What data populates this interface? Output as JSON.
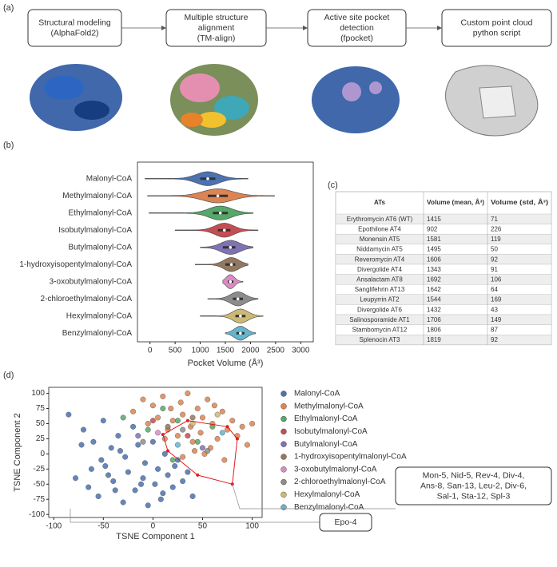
{
  "panels": [
    "(a)",
    "(b)",
    "(c)",
    "(d)"
  ],
  "workflow": {
    "steps": [
      {
        "title": "Structural modeling",
        "subtitle": "(AlphaFold2)"
      },
      {
        "title": "Multiple structure",
        "subtitle": "alignment",
        "subtitle2": "(TM-align)"
      },
      {
        "title": "Active site pocket",
        "subtitle": "detection",
        "subtitle2": "(fpocket)"
      },
      {
        "title": "Custom point cloud",
        "subtitle": "python script"
      }
    ]
  },
  "table": {
    "columns": [
      "ATs",
      "Volume (mean, Å³)",
      "Volume (std, Å³)"
    ],
    "rows": [
      [
        "Erythromycin AT6 (WT)",
        1415,
        71
      ],
      [
        "Epothilone AT4",
        902,
        226
      ],
      [
        "Monensin AT5",
        1581,
        119
      ],
      [
        "Niddamycin AT5",
        1495,
        50
      ],
      [
        "Reveromycin AT4",
        1606,
        92
      ],
      [
        "Divergolide AT4",
        1343,
        91
      ],
      [
        "Ansalactam AT8",
        1692,
        106
      ],
      [
        "Sanglifehrin AT13",
        1642,
        64
      ],
      [
        "Leupyrrin AT2",
        1544,
        169
      ],
      [
        "Divergolide AT6",
        1432,
        43
      ],
      [
        "Salinosporamide AT1",
        1706,
        149
      ],
      [
        "Stambomycin AT12",
        1806,
        87
      ],
      [
        "Splenocin AT3",
        1819,
        92
      ]
    ]
  },
  "chart_data": [
    {
      "type": "violin",
      "xlabel": "Pocket Volume (Å³)",
      "categories": [
        "Malonyl-CoA",
        "Methylmalonyl-CoA",
        "Ethylmalonyl-CoA",
        "Isobutylmalonyl-CoA",
        "Butylmalonyl-CoA",
        "1-hydroxyisopentylmalonyl-CoA",
        "3-oxobutylmalonyl-CoA",
        "2-chloroethylmalonyl-CoA",
        "Hexylmalonyl-CoA",
        "Benzylmalonyl-CoA"
      ],
      "colors": [
        "#4c72b0",
        "#dd8452",
        "#55a868",
        "#c44e52",
        "#8172b3",
        "#937860",
        "#da8bc3",
        "#8c8c8c",
        "#ccb974",
        "#64b5cd"
      ],
      "min": [
        -100,
        -50,
        -20,
        500,
        1000,
        900,
        1450,
        1150,
        1000,
        1500
      ],
      "q1": [
        1000,
        1150,
        1250,
        1350,
        1450,
        1500,
        1550,
        1650,
        1700,
        1720
      ],
      "median": [
        1150,
        1350,
        1400,
        1480,
        1600,
        1620,
        1600,
        1750,
        1800,
        1800
      ],
      "q3": [
        1300,
        1550,
        1550,
        1600,
        1700,
        1700,
        1660,
        1850,
        1900,
        1880
      ],
      "max": [
        1950,
        2480,
        2050,
        2150,
        2050,
        1950,
        1850,
        2150,
        2250,
        2100
      ],
      "xlim": [
        -250,
        3250
      ],
      "xticks": [
        0,
        500,
        1000,
        1500,
        2000,
        2500,
        3000
      ]
    },
    {
      "type": "scatter",
      "xlabel": "TSNE Component 1",
      "ylabel": "TSNE Component 2",
      "xlim": [
        -105,
        110
      ],
      "ylim": [
        -105,
        110
      ],
      "xticks": [
        -100,
        -50,
        0,
        50,
        100
      ],
      "yticks": [
        -100,
        -75,
        -50,
        -25,
        0,
        25,
        50,
        75,
        100
      ],
      "series": [
        {
          "name": "Malonyl-CoA",
          "color": "#4c72b0",
          "x": [
            -85,
            -78,
            -70,
            -65,
            -60,
            -55,
            -50,
            -48,
            -42,
            -40,
            -35,
            -30,
            -28,
            -25,
            -20,
            -18,
            -15,
            -10,
            -8,
            -5,
            0,
            2,
            5,
            10,
            12,
            15,
            20,
            25,
            30,
            35,
            40,
            -62,
            -45,
            -33,
            -12,
            8,
            22,
            -72,
            -52,
            -38
          ],
          "y": [
            65,
            -40,
            40,
            -55,
            20,
            -70,
            55,
            -20,
            10,
            -45,
            30,
            -80,
            -5,
            -30,
            45,
            -60,
            15,
            -40,
            -15,
            -85,
            20,
            -50,
            -25,
            -65,
            0,
            -35,
            -55,
            -10,
            -45,
            -30,
            -70,
            -25,
            -35,
            5,
            -50,
            -75,
            -20,
            15,
            -10,
            -60
          ]
        },
        {
          "name": "Methylmalonyl-CoA",
          "color": "#dd8452",
          "x": [
            -20,
            -10,
            -5,
            0,
            5,
            10,
            15,
            18,
            20,
            25,
            28,
            30,
            35,
            38,
            40,
            45,
            48,
            50,
            55,
            58,
            60,
            65,
            70,
            75,
            80,
            85,
            90,
            95,
            100,
            30,
            42,
            62,
            12,
            52,
            72
          ],
          "y": [
            70,
            90,
            50,
            80,
            60,
            95,
            40,
            75,
            55,
            30,
            85,
            65,
            100,
            45,
            20,
            75,
            35,
            60,
            90,
            10,
            50,
            25,
            70,
            40,
            55,
            30,
            45,
            15,
            50,
            -5,
            5,
            80,
            25,
            0,
            -10
          ]
        },
        {
          "name": "Ethylmalonyl-CoA",
          "color": "#55a868",
          "x": [
            -30,
            -5,
            10,
            25,
            45,
            60,
            20
          ],
          "y": [
            60,
            40,
            75,
            55,
            20,
            45,
            -10
          ]
        },
        {
          "name": "Isobutylmalonyl-CoA",
          "color": "#c44e52",
          "x": [
            0,
            35
          ],
          "y": [
            55,
            30
          ]
        },
        {
          "name": "Butylmalonyl-CoA",
          "color": "#8172b3",
          "x": [
            -15,
            50
          ],
          "y": [
            30,
            10
          ]
        },
        {
          "name": "1-hydroxyisopentylmalonyl-CoA",
          "color": "#937860",
          "x": [
            15,
            40
          ],
          "y": [
            45,
            60
          ]
        },
        {
          "name": "3-oxobutylmalonyl-CoA",
          "color": "#da8bc3",
          "x": [
            5
          ],
          "y": [
            35
          ]
        },
        {
          "name": "2-chloroethylmalonyl-CoA",
          "color": "#8c8c8c",
          "x": [
            -10,
            30,
            55
          ],
          "y": [
            20,
            40,
            5
          ]
        },
        {
          "name": "Hexylmalonyl-CoA",
          "color": "#ccb974",
          "x": [
            40,
            65
          ],
          "y": [
            50,
            65
          ]
        },
        {
          "name": "Benzylmalonyl-CoA",
          "color": "#64b5cd",
          "x": [
            25,
            70
          ],
          "y": [
            15,
            35
          ]
        }
      ],
      "hull": {
        "color": "#e31a1c",
        "x": [
          10,
          35,
          75,
          85,
          80,
          45,
          15
        ],
        "y": [
          32,
          55,
          45,
          25,
          -50,
          -35,
          5
        ]
      },
      "annotations": [
        {
          "lines": [
            "Mon-5, Nid-5, Rev-4, Div-4,",
            "Ans-8, San-13, Leu-2, Div-6,",
            "Sal-1, Sta-12, Spl-3"
          ]
        },
        {
          "lines": [
            "Epo-4"
          ]
        }
      ]
    }
  ]
}
